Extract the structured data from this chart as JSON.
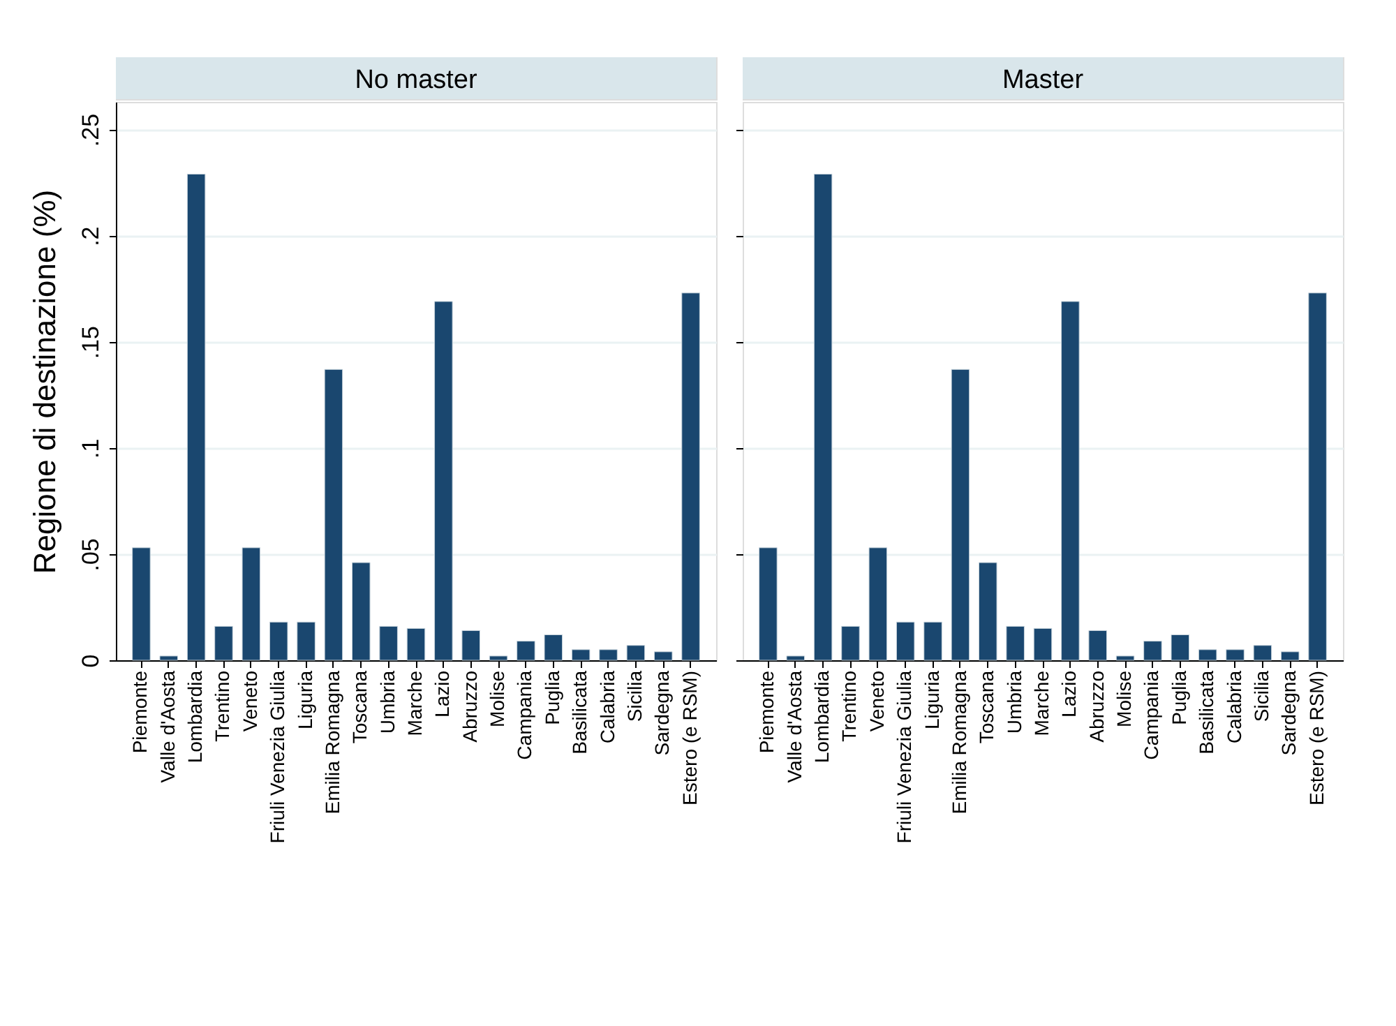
{
  "chart_data": [
    {
      "type": "bar",
      "title": "No master",
      "ylabel": "Regione di destinazione (%)",
      "categories": [
        "Piemonte",
        "Valle d'Aosta",
        "Lombardia",
        "Trentino",
        "Veneto",
        "Friuli Venezia Giulia",
        "Liguria",
        "Emilia Romagna",
        "Toscana",
        "Umbria",
        "Marche",
        "Lazio",
        "Abruzzo",
        "Molise",
        "Campania",
        "Puglia",
        "Basilicata",
        "Calabria",
        "Sicilia",
        "Sardegna",
        "Estero (e RSM)"
      ],
      "values": [
        0.053,
        0.002,
        0.229,
        0.016,
        0.053,
        0.018,
        0.018,
        0.137,
        0.046,
        0.016,
        0.015,
        0.169,
        0.014,
        0.002,
        0.009,
        0.012,
        0.005,
        0.005,
        0.007,
        0.004,
        0.173
      ],
      "color": "#1a476f",
      "ylim": [
        0,
        0.263
      ],
      "yticks": [
        0,
        {
          "value": 0.05,
          "label": ".05"
        },
        {
          "value": 0.1,
          "label": ".1"
        },
        {
          "value": 0.15,
          "label": ".15"
        },
        {
          "value": 0.2,
          "label": ".2"
        },
        {
          "value": 0.25,
          "label": ".25"
        }
      ],
      "grid": "y"
    },
    {
      "type": "bar",
      "title": "Master",
      "categories": [
        "Piemonte",
        "Valle d'Aosta",
        "Lombardia",
        "Trentino",
        "Veneto",
        "Friuli Venezia Giulia",
        "Liguria",
        "Emilia Romagna",
        "Toscana",
        "Umbria",
        "Marche",
        "Lazio",
        "Abruzzo",
        "Molise",
        "Campania",
        "Puglia",
        "Basilicata",
        "Calabria",
        "Sicilia",
        "Sardegna",
        "Estero (e RSM)"
      ],
      "values": [
        0.053,
        0.002,
        0.229,
        0.016,
        0.053,
        0.018,
        0.018,
        0.137,
        0.046,
        0.016,
        0.015,
        0.169,
        0.014,
        0.002,
        0.009,
        0.012,
        0.005,
        0.005,
        0.007,
        0.004,
        0.173
      ],
      "color": "#1a476f",
      "ylim": [
        0,
        0.263
      ],
      "yticks": [
        {
          "value": 0,
          "label": null
        },
        {
          "value": 0.05,
          "label": null
        },
        {
          "value": 0.1,
          "label": null
        },
        {
          "value": 0.15,
          "label": null
        },
        {
          "value": 0.2,
          "label": null
        },
        {
          "value": 0.25,
          "label": null
        }
      ],
      "grid": "y",
      "tick_labels": "x"
    }
  ]
}
